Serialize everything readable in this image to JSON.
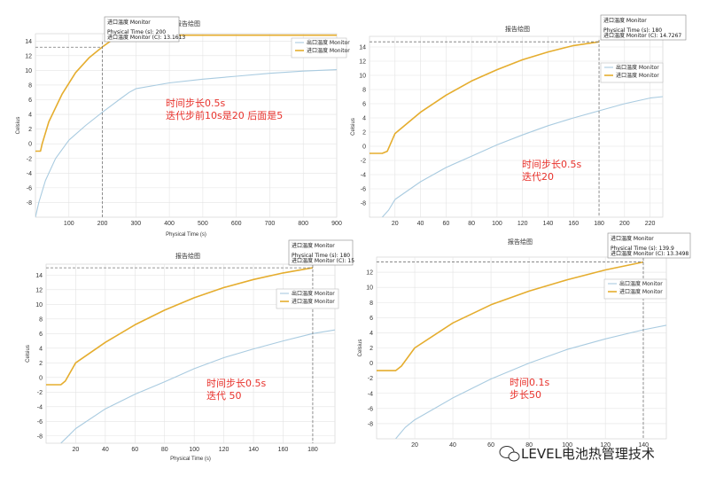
{
  "colors": {
    "inlet": "#e5ad2e",
    "outlet": "#a9cbe0",
    "note": "#e8322c",
    "grid": "#e3e3e3"
  },
  "watermark": {
    "text": "LEVEL电池热管理技术",
    "icon": "wechat-icon"
  },
  "chart_data": [
    {
      "type": "line",
      "title": "报告绘图",
      "xlabel": "Physical Time (s)",
      "ylabel": "Celsius",
      "xlim": [
        0,
        900
      ],
      "ylim": [
        -10,
        15
      ],
      "xticks": [
        100,
        200,
        300,
        400,
        500,
        600,
        700,
        800,
        900
      ],
      "yticks": [
        -8,
        -6,
        -4,
        -2,
        0,
        2,
        4,
        6,
        8,
        10,
        12,
        14
      ],
      "legend": "top-right",
      "series": [
        {
          "name": "出口温度 Monitor",
          "x": [
            0,
            10,
            30,
            60,
            100,
            150,
            200,
            250,
            280,
            300,
            400,
            500,
            600,
            700,
            800,
            900
          ],
          "y": [
            -10,
            -8,
            -5,
            -2,
            0.5,
            2.5,
            4.3,
            6,
            7,
            7.5,
            8.3,
            8.8,
            9.2,
            9.6,
            9.9,
            10.1
          ]
        },
        {
          "name": "进口温度 Monitor",
          "x": [
            0,
            15,
            20,
            40,
            80,
            120,
            160,
            200,
            240,
            260,
            900
          ],
          "y": [
            -1,
            -1,
            0,
            3,
            6.8,
            9.7,
            11.7,
            13.2,
            14.5,
            14.8,
            14.8
          ]
        }
      ],
      "cursor": {
        "x": 200,
        "y": 13.1613
      },
      "tooltip": {
        "header": "进口温度 Monitor",
        "line1": "Physical Time (s): 200",
        "line2": "进口温度 Monitor (C): 13.1613"
      },
      "notes": [
        "时间步长0.5s",
        "迭代步前10s是20 后面是5"
      ]
    },
    {
      "type": "line",
      "title": "报告绘图",
      "xlabel": "",
      "ylabel": "Celsius",
      "xlim": [
        0,
        230
      ],
      "ylim": [
        -10,
        15.5
      ],
      "xticks": [
        20,
        40,
        60,
        80,
        100,
        120,
        140,
        160,
        180,
        200,
        220
      ],
      "yticks": [
        -8,
        -6,
        -4,
        -2,
        0,
        2,
        4,
        6,
        8,
        10,
        12,
        14
      ],
      "legend": "top-right",
      "series": [
        {
          "name": "出口温度 Monitor",
          "x": [
            10,
            15,
            20,
            40,
            60,
            80,
            100,
            120,
            140,
            160,
            180,
            200,
            220,
            230
          ],
          "y": [
            -10,
            -9,
            -7.5,
            -5,
            -3,
            -1.4,
            0.2,
            1.6,
            2.9,
            4,
            5,
            6,
            6.8,
            7
          ]
        },
        {
          "name": "进口温度 Monitor",
          "x": [
            0,
            10,
            14,
            20,
            30,
            40,
            60,
            80,
            100,
            120,
            140,
            160,
            180
          ],
          "y": [
            -1,
            -1,
            -0.7,
            1.8,
            3.3,
            4.8,
            7.2,
            9.2,
            10.8,
            12.2,
            13.3,
            14.2,
            14.7267
          ]
        }
      ],
      "cursor": {
        "x": 180,
        "y": 14.7267
      },
      "tooltip": {
        "header": "进口温度 Monitor",
        "line1": "Physical Time (s): 180",
        "line2": "进口温度 Monitor (C): 14.7267"
      },
      "notes": [
        "时间步长0.5s",
        "迭代20"
      ]
    },
    {
      "type": "line",
      "title": "报告绘图",
      "xlabel": "Physical Time (s)",
      "ylabel": "Celsius",
      "xlim": [
        0,
        195
      ],
      "ylim": [
        -9,
        15.5
      ],
      "xticks": [
        20,
        40,
        60,
        80,
        100,
        120,
        140,
        160,
        180
      ],
      "yticks": [
        -8,
        -6,
        -4,
        -2,
        0,
        2,
        4,
        6,
        8,
        10,
        12,
        14
      ],
      "legend": "top-right",
      "series": [
        {
          "name": "出口温度 Monitor",
          "x": [
            10,
            15,
            20,
            40,
            60,
            80,
            100,
            120,
            140,
            160,
            180,
            195
          ],
          "y": [
            -9,
            -8,
            -7,
            -4.3,
            -2.3,
            -0.6,
            1.2,
            2.7,
            3.9,
            5,
            6,
            6.5
          ]
        },
        {
          "name": "进口温度 Monitor",
          "x": [
            0,
            10,
            13,
            20,
            40,
            60,
            80,
            100,
            120,
            140,
            160,
            180
          ],
          "y": [
            -1,
            -1,
            -0.5,
            2,
            4.8,
            7.2,
            9.2,
            10.9,
            12.3,
            13.4,
            14.3,
            15
          ]
        }
      ],
      "cursor": {
        "x": 180,
        "y": 15
      },
      "tooltip": {
        "header": "进口温度 Monitor",
        "line1": "Physical Time (s): 180",
        "line2": "进口温度 Monitor (C): 15"
      },
      "notes": [
        "时间步长0.5s",
        "迭代  50"
      ]
    },
    {
      "type": "line",
      "title": "报告绘图",
      "xlabel": "",
      "ylabel": "Celsius",
      "xlim": [
        0,
        152
      ],
      "ylim": [
        -10,
        14
      ],
      "xticks": [
        20,
        40,
        60,
        80,
        100,
        120,
        140
      ],
      "yticks": [
        -8,
        -6,
        -4,
        -2,
        0,
        2,
        4,
        6,
        8,
        10,
        12
      ],
      "legend": "top-right",
      "series": [
        {
          "name": "出口温度 Monitor",
          "x": [
            10,
            15,
            20,
            40,
            60,
            80,
            100,
            120,
            140,
            152
          ],
          "y": [
            -10,
            -8.5,
            -7.5,
            -4.6,
            -2.1,
            0,
            1.8,
            3.2,
            4.4,
            5
          ]
        },
        {
          "name": "进口温度 Monitor",
          "x": [
            0,
            10,
            13,
            20,
            40,
            60,
            80,
            100,
            120,
            139.9
          ],
          "y": [
            -1,
            -1,
            -0.4,
            2,
            5.3,
            7.7,
            9.5,
            11,
            12.3,
            13.3498
          ]
        }
      ],
      "cursor": {
        "x": 139.9,
        "y": 13.3498
      },
      "tooltip": {
        "header": "进口温度 Monitor",
        "line1": "Physical Time (s): 139.9",
        "line2": "进口温度 Monitor (C): 13.3498"
      },
      "notes": [
        "时间0.1s",
        "步长50"
      ]
    }
  ]
}
